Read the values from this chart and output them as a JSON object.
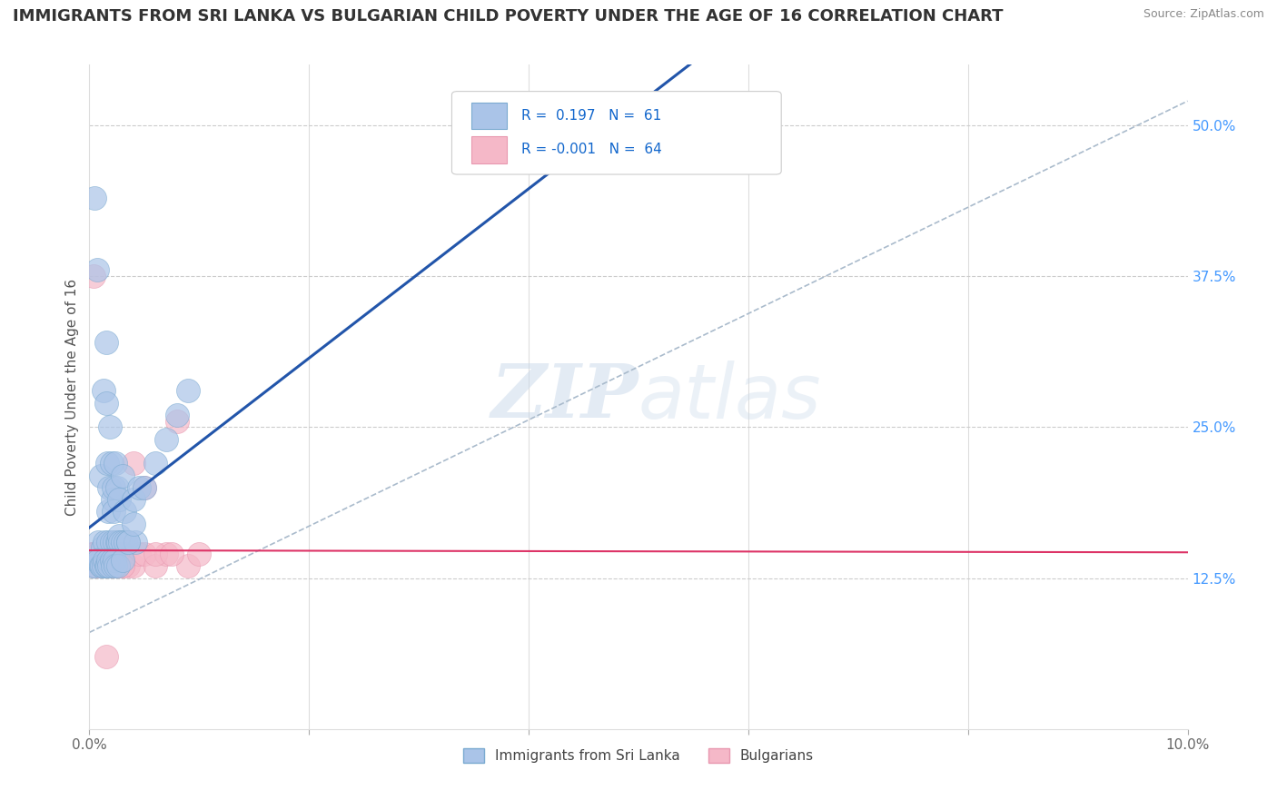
{
  "title": "IMMIGRANTS FROM SRI LANKA VS BULGARIAN CHILD POVERTY UNDER THE AGE OF 16 CORRELATION CHART",
  "source": "Source: ZipAtlas.com",
  "ylabel": "Child Poverty Under the Age of 16",
  "xlim": [
    0.0,
    0.1
  ],
  "ylim": [
    0.0,
    0.55
  ],
  "ytick_positions": [
    0.125,
    0.25,
    0.375,
    0.5
  ],
  "yticklabels": [
    "12.5%",
    "25.0%",
    "37.5%",
    "50.0%"
  ],
  "grid_color": "#cccccc",
  "background_color": "#ffffff",
  "series1_color": "#aac4e8",
  "series2_color": "#f5b8c8",
  "series1_edge_color": "#7aaad0",
  "series2_edge_color": "#e898b0",
  "series1_label": "Immigrants from Sri Lanka",
  "series2_label": "Bulgarians",
  "r1": 0.197,
  "r2": -0.001,
  "n1": 61,
  "n2": 64,
  "line1_color": "#2255aa",
  "line2_color": "#dd3366",
  "dash_color": "#aabbcc",
  "watermark_color": "#c8d8e8",
  "title_fontsize": 13,
  "axis_label_fontsize": 11,
  "tick_fontsize": 11,
  "sri_lanka_x": [
    0.0003,
    0.0005,
    0.0007,
    0.0008,
    0.001,
    0.001,
    0.0012,
    0.0013,
    0.0014,
    0.0015,
    0.0015,
    0.0016,
    0.0017,
    0.0017,
    0.0018,
    0.0019,
    0.002,
    0.002,
    0.0021,
    0.0022,
    0.0022,
    0.0023,
    0.0024,
    0.0025,
    0.0025,
    0.0026,
    0.0027,
    0.0027,
    0.0028,
    0.003,
    0.003,
    0.0032,
    0.0033,
    0.0035,
    0.004,
    0.0042,
    0.0045,
    0.0005,
    0.0006,
    0.0008,
    0.001,
    0.0011,
    0.0013,
    0.0014,
    0.0015,
    0.0016,
    0.0017,
    0.0018,
    0.002,
    0.0021,
    0.0023,
    0.0024,
    0.0026,
    0.003,
    0.0035,
    0.004,
    0.005,
    0.006,
    0.007,
    0.008,
    0.009
  ],
  "sri_lanka_y": [
    0.135,
    0.44,
    0.38,
    0.155,
    0.21,
    0.14,
    0.15,
    0.28,
    0.155,
    0.32,
    0.27,
    0.22,
    0.18,
    0.155,
    0.2,
    0.25,
    0.22,
    0.155,
    0.19,
    0.18,
    0.2,
    0.155,
    0.22,
    0.2,
    0.155,
    0.155,
    0.16,
    0.19,
    0.155,
    0.155,
    0.21,
    0.18,
    0.155,
    0.155,
    0.19,
    0.155,
    0.2,
    0.135,
    0.14,
    0.14,
    0.135,
    0.135,
    0.135,
    0.14,
    0.135,
    0.135,
    0.14,
    0.135,
    0.14,
    0.135,
    0.14,
    0.135,
    0.135,
    0.14,
    0.155,
    0.17,
    0.2,
    0.22,
    0.24,
    0.26,
    0.28
  ],
  "bulgarians_x": [
    0.0003,
    0.0004,
    0.0005,
    0.0006,
    0.0007,
    0.0008,
    0.0009,
    0.001,
    0.001,
    0.0011,
    0.0012,
    0.0013,
    0.0014,
    0.0015,
    0.0016,
    0.0017,
    0.0018,
    0.0019,
    0.002,
    0.002,
    0.0021,
    0.0022,
    0.0023,
    0.0024,
    0.0025,
    0.0026,
    0.0027,
    0.0028,
    0.003,
    0.0032,
    0.0035,
    0.004,
    0.0045,
    0.005,
    0.006,
    0.007,
    0.008,
    0.009,
    0.01,
    0.0003,
    0.0004,
    0.0005,
    0.0006,
    0.0007,
    0.0008,
    0.0009,
    0.001,
    0.0012,
    0.0014,
    0.0016,
    0.0018,
    0.002,
    0.0022,
    0.0025,
    0.003,
    0.004,
    0.005,
    0.006,
    0.0075,
    0.0003,
    0.0005,
    0.0007,
    0.001,
    0.0015
  ],
  "bulgarians_y": [
    0.145,
    0.375,
    0.145,
    0.145,
    0.145,
    0.145,
    0.145,
    0.145,
    0.135,
    0.145,
    0.145,
    0.145,
    0.145,
    0.135,
    0.135,
    0.135,
    0.145,
    0.145,
    0.145,
    0.135,
    0.145,
    0.135,
    0.135,
    0.135,
    0.145,
    0.145,
    0.145,
    0.135,
    0.135,
    0.145,
    0.135,
    0.135,
    0.145,
    0.145,
    0.135,
    0.145,
    0.255,
    0.135,
    0.145,
    0.145,
    0.135,
    0.145,
    0.135,
    0.145,
    0.145,
    0.145,
    0.145,
    0.145,
    0.145,
    0.135,
    0.135,
    0.145,
    0.135,
    0.145,
    0.135,
    0.22,
    0.2,
    0.145,
    0.145,
    0.145,
    0.145,
    0.145,
    0.145,
    0.06
  ]
}
